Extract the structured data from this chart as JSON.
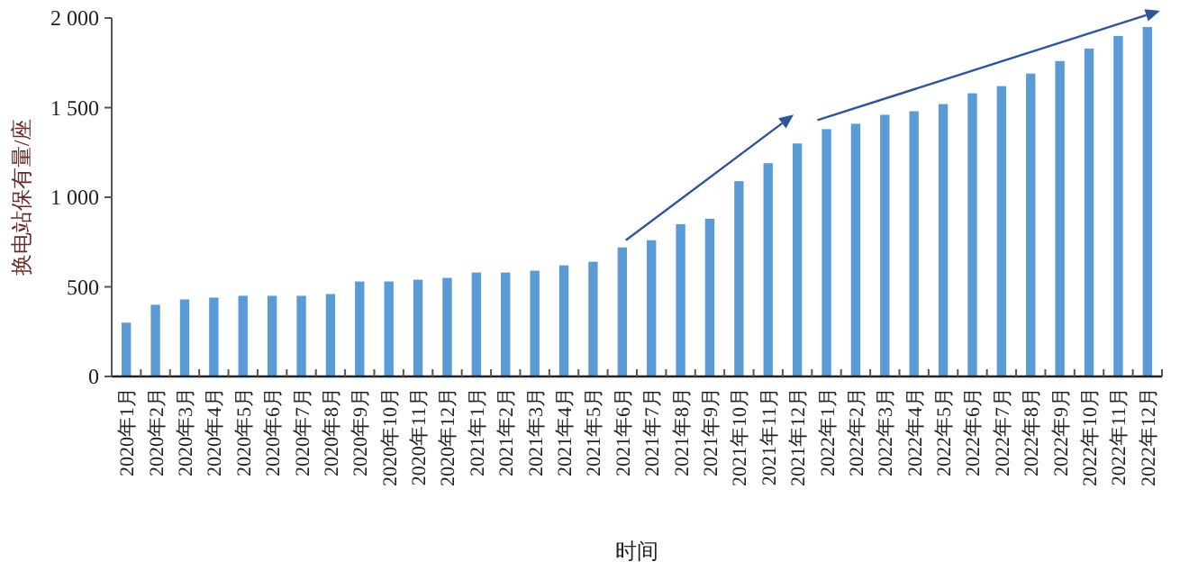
{
  "chart_data": {
    "type": "bar",
    "xlabel": "时间",
    "ylabel": "换电站保有量/座",
    "categories": [
      "2020年1月",
      "2020年2月",
      "2020年3月",
      "2020年4月",
      "2020年5月",
      "2020年6月",
      "2020年7月",
      "2020年8月",
      "2020年9月",
      "2020年10月",
      "2020年11月",
      "2020年12月",
      "2021年1月",
      "2021年2月",
      "2021年3月",
      "2021年4月",
      "2021年5月",
      "2021年6月",
      "2021年7月",
      "2021年8月",
      "2021年9月",
      "2021年10月",
      "2021年11月",
      "2021年12月",
      "2022年1月",
      "2022年2月",
      "2022年3月",
      "2022年4月",
      "2022年5月",
      "2022年6月",
      "2022年7月",
      "2022年8月",
      "2022年9月",
      "2022年10月",
      "2022年11月",
      "2022年12月"
    ],
    "values": [
      300,
      400,
      430,
      440,
      450,
      450,
      450,
      460,
      530,
      530,
      540,
      550,
      580,
      580,
      590,
      620,
      640,
      720,
      760,
      850,
      880,
      1090,
      1190,
      1300,
      1380,
      1410,
      1460,
      1480,
      1520,
      1580,
      1620,
      1690,
      1760,
      1830,
      1900,
      1950
    ],
    "color": "#5b9bd5",
    "ylim": [
      0,
      2000
    ],
    "yticks": [
      0,
      500,
      {
        "value": 1000,
        "label": "1 000"
      },
      {
        "value": 1500,
        "label": "1 500"
      },
      {
        "value": 2000,
        "label": "2 000"
      }
    ],
    "grid": false
  }
}
